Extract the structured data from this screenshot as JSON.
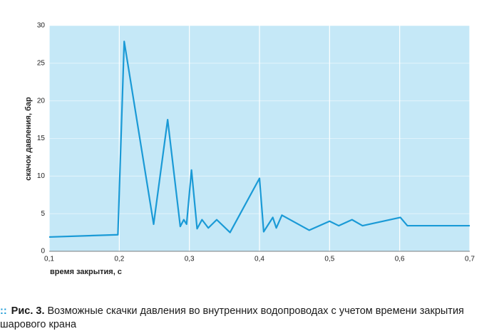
{
  "chart_data": {
    "type": "line",
    "ylabel": "скачок давления, бар",
    "xlabel": "время закрытия, с",
    "x": [
      0.1,
      0.198,
      0.207,
      0.249,
      0.269,
      0.287,
      0.292,
      0.296,
      0.303,
      0.311,
      0.318,
      0.327,
      0.339,
      0.358,
      0.4,
      0.406,
      0.419,
      0.424,
      0.432,
      0.471,
      0.5,
      0.513,
      0.532,
      0.547,
      0.601,
      0.611,
      0.7
    ],
    "series": [
      {
        "color": "#1a9ad6",
        "values": [
          1.9,
          2.2,
          27.9,
          3.6,
          17.5,
          3.3,
          4.2,
          3.6,
          10.8,
          3.0,
          4.2,
          3.1,
          4.2,
          2.5,
          9.7,
          2.6,
          4.5,
          3.1,
          4.8,
          2.8,
          4.0,
          3.4,
          4.2,
          3.4,
          4.5,
          3.4,
          3.4
        ]
      }
    ],
    "xlim": [
      0.1,
      0.7
    ],
    "xticks": [
      {
        "value": 0.1,
        "label": "0,1"
      },
      {
        "value": 0.2,
        "label": "0,2"
      },
      {
        "value": 0.3,
        "label": "0,3"
      },
      {
        "value": 0.4,
        "label": "0,4"
      },
      {
        "value": 0.5,
        "label": "0,5"
      },
      {
        "value": 0.6,
        "label": "0,6"
      },
      {
        "value": 0.7,
        "label": "0,7"
      }
    ],
    "ylim": [
      0,
      30
    ],
    "yticks": [
      0,
      5,
      10,
      15,
      20,
      25,
      30
    ],
    "grid": true,
    "background": "#c5e8f7"
  },
  "caption": {
    "label": "Рис. 3.",
    "text": "Возможные скачки давления во внутренних водопроводах с учетом времени закрытия шарового крана"
  }
}
